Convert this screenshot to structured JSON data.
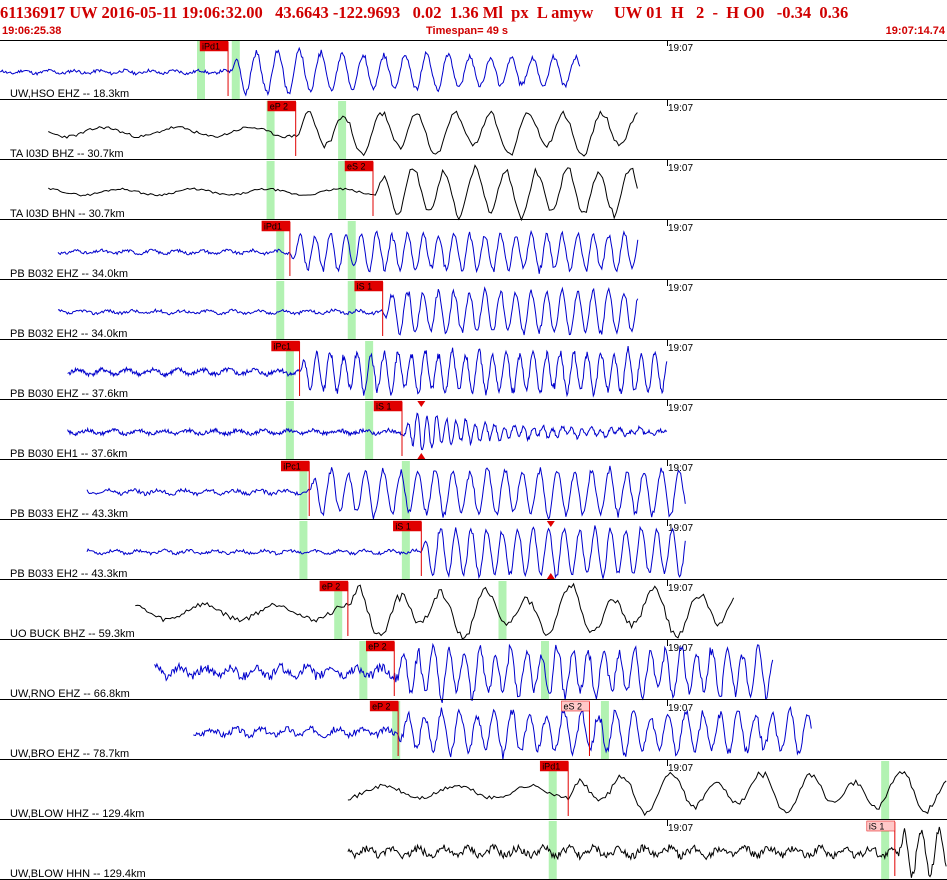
{
  "header": {
    "title": "61136917 UW 2016-05-11 19:06:32.00   43.6643 -122.9693   0.02  1.36 Ml  px  L amyw     UW 01  H   2  -  H O0   -0.34  0.36",
    "start_time": "19:06:25.38",
    "timespan": "Timespan=  49 s",
    "end_time": "19:07:14.74"
  },
  "colors": {
    "header": "#d00000",
    "pick": "#e00000",
    "window": "#b2f2b2",
    "blue": "#0000cc",
    "black": "#000000"
  },
  "chart_data": {
    "type": "line",
    "title": "61136917 UW 2016-05-11 19:06:32.00",
    "x_range_seconds": [
      0,
      49
    ],
    "minute_mark": "19:07",
    "traces": [
      {
        "label": "UW,HSO EHZ -- 18.3km",
        "color": "blue",
        "data_start_s": 0.0,
        "data_end_s": 30.0,
        "noise": 0.1,
        "onset_s": 11.8,
        "rise": 0.7,
        "peak": 0.85,
        "period_s": 1.1,
        "decay": 0.03,
        "seed": 11,
        "picks": [
          {
            "label": "iPd1",
            "t": 11.8,
            "pale": false
          }
        ],
        "windows": [
          10.4,
          12.2
        ],
        "picks_bold": false
      },
      {
        "label": "TA I03D BHZ -- 30.7km",
        "color": "black",
        "data_start_s": 2.5,
        "data_end_s": 33.0,
        "noise": 0.3,
        "onset_s": 15.3,
        "rise": 0.5,
        "peak": 0.75,
        "period_s": 1.9,
        "decay": 0.0,
        "seed": 23,
        "lp": true,
        "picks": [
          {
            "label": "eP 2",
            "t": 15.3,
            "pale": false
          }
        ],
        "windows": [
          14.0,
          17.7
        ]
      },
      {
        "label": "TA I03D BHN -- 30.7km",
        "color": "black",
        "data_start_s": 2.5,
        "data_end_s": 33.0,
        "noise": 0.2,
        "onset_s": 19.3,
        "rise": 0.6,
        "peak": 0.85,
        "period_s": 1.6,
        "decay": 0.0,
        "seed": 29,
        "lp": true,
        "picks": [
          {
            "label": "eS 2",
            "t": 19.3,
            "pale": false
          }
        ],
        "windows": [
          14.0,
          17.7
        ]
      },
      {
        "label": "PB B032 EHZ -- 34.0km",
        "color": "blue",
        "data_start_s": 3.0,
        "data_end_s": 33.0,
        "noise": 0.1,
        "onset_s": 15.0,
        "rise": 0.6,
        "peak": 0.7,
        "period_s": 0.8,
        "decay": 0.0,
        "seed": 31,
        "picks": [
          {
            "label": "iPd1",
            "t": 15.0,
            "pale": false
          }
        ],
        "windows": [
          14.5,
          18.2
        ]
      },
      {
        "label": "PB B032 EH2 -- 34.0km",
        "color": "blue",
        "data_start_s": 3.0,
        "data_end_s": 33.0,
        "noise": 0.1,
        "onset_s": 19.8,
        "rise": 0.4,
        "peak": 0.8,
        "period_s": 0.8,
        "decay": 0.0,
        "seed": 37,
        "picks": [
          {
            "label": "iS 1",
            "t": 19.8,
            "pale": false
          }
        ],
        "windows": [
          14.5,
          18.2
        ]
      },
      {
        "label": "PB B030 EHZ -- 37.6km",
        "color": "blue",
        "data_start_s": 3.5,
        "data_end_s": 34.5,
        "noise": 0.15,
        "onset_s": 15.5,
        "rise": 0.5,
        "peak": 0.75,
        "period_s": 0.7,
        "decay": 0.0,
        "seed": 41,
        "picks": [
          {
            "label": "iPc1",
            "t": 15.5,
            "pale": false
          }
        ],
        "windows": [
          15.0,
          19.1
        ]
      },
      {
        "label": "PB B030 EH1 -- 37.6km",
        "color": "blue",
        "data_start_s": 3.5,
        "data_end_s": 34.5,
        "noise": 0.12,
        "onset_s": 20.8,
        "rise": 0.8,
        "peak": 0.9,
        "period_s": 0.5,
        "decay": 0.28,
        "seed": 43,
        "picks": [
          {
            "label": "iS 1",
            "t": 20.8,
            "pale": false
          }
        ],
        "windows": [
          15.0,
          19.1
        ],
        "amp_marker_s": 21.8
      },
      {
        "label": "PB B033 EHZ -- 43.3km",
        "color": "blue",
        "data_start_s": 4.5,
        "data_end_s": 35.5,
        "noise": 0.12,
        "onset_s": 16.0,
        "rise": 0.5,
        "peak": 0.85,
        "period_s": 0.9,
        "decay": 0.0,
        "seed": 47,
        "picks": [
          {
            "label": "iPc1",
            "t": 16.0,
            "pale": false
          }
        ],
        "windows": [
          15.7,
          21.0
        ]
      },
      {
        "label": "PB B033 EH2 -- 43.3km",
        "color": "blue",
        "data_start_s": 4.5,
        "data_end_s": 35.5,
        "noise": 0.1,
        "onset_s": 21.8,
        "rise": 0.4,
        "peak": 0.9,
        "period_s": 0.8,
        "decay": 0.0,
        "seed": 53,
        "picks": [
          {
            "label": "iS 1",
            "t": 21.8,
            "pale": false
          }
        ],
        "windows": [
          15.7,
          21.0
        ],
        "amp_marker_s": 28.5
      },
      {
        "label": "UO BUCK BHZ -- 59.3km",
        "color": "black",
        "data_start_s": 7.0,
        "data_end_s": 38.0,
        "noise": 0.5,
        "onset_s": 18.0,
        "rise": 0.6,
        "peak": 0.75,
        "period_s": 2.2,
        "decay": 0.0,
        "seed": 59,
        "lp": true,
        "picks": [
          {
            "label": "eP 2",
            "t": 18.0,
            "pale": false
          }
        ],
        "windows": [
          17.5,
          26.0
        ]
      },
      {
        "label": "UW,RNO EHZ -- 66.8km",
        "color": "blue",
        "data_start_s": 8.0,
        "data_end_s": 40.0,
        "noise": 0.3,
        "onset_s": 20.4,
        "rise": 0.6,
        "peak": 0.85,
        "period_s": 0.8,
        "decay": 0.0,
        "seed": 61,
        "picks": [
          {
            "label": "eP 2",
            "t": 20.4,
            "pale": false
          }
        ],
        "windows": [
          18.8,
          28.2
        ]
      },
      {
        "label": "UW,BRO EHZ -- 78.7km",
        "color": "blue",
        "data_start_s": 10.0,
        "data_end_s": 42.0,
        "noise": 0.2,
        "onset_s": 20.6,
        "rise": 0.5,
        "peak": 0.75,
        "period_s": 0.9,
        "decay": 0.0,
        "seed": 67,
        "picks": [
          {
            "label": "eP 2",
            "t": 20.6,
            "pale": false
          },
          {
            "label": "eS 2",
            "t": 30.5,
            "pale": true
          }
        ],
        "windows": [
          20.5,
          31.3
        ]
      },
      {
        "label": "UW,BLOW HHZ -- 129.4km",
        "color": "black",
        "data_start_s": 18.0,
        "data_end_s": 49.0,
        "noise": 0.4,
        "onset_s": 29.4,
        "rise": 0.5,
        "peak": 0.6,
        "period_s": 2.4,
        "decay": 0.0,
        "seed": 71,
        "lp": true,
        "picks": [
          {
            "label": "iPd1",
            "t": 29.4,
            "pale": false
          }
        ],
        "windows": [
          28.6,
          45.8
        ]
      },
      {
        "label": "UW,BLOW HHN -- 129.4km",
        "color": "black",
        "data_start_s": 18.0,
        "data_end_s": 49.0,
        "noise": 0.25,
        "onset_s": 46.3,
        "rise": 0.5,
        "peak": 0.85,
        "period_s": 0.9,
        "decay": 0.0,
        "seed": 73,
        "picks": [
          {
            "label": "iS 1",
            "t": 46.3,
            "pale": true
          }
        ],
        "windows": [
          28.6,
          45.8
        ]
      }
    ]
  }
}
